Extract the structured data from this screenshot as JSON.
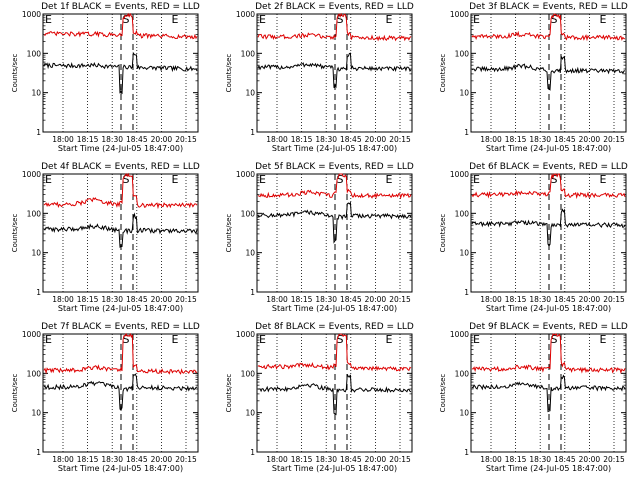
{
  "figure": {
    "background": "#ffffff",
    "panel_titles_format": "Det {n}f BLACK = Events, RED = LLD"
  },
  "chart_data": [
    {
      "type": "line",
      "title": "Det 1f BLACK = Events, RED = LLD",
      "xlabel": "Start Time (24-Jul-05 18:47:00)",
      "ylabel": "Counts/sec",
      "xticks": [
        "18:00",
        "18:15",
        "18:30",
        "18:45",
        "20:00",
        "20:15"
      ],
      "yticks": [
        "1",
        "10",
        "100",
        "1000"
      ],
      "ylim": [
        1,
        1000
      ],
      "yscale": "log",
      "markers": [
        "S",
        "E"
      ],
      "series": [
        {
          "name": "Events",
          "color": "#000000",
          "profile": {
            "base_start": 50,
            "base_end": 40,
            "bump": 55,
            "spike_dip": 10,
            "spike_peak": 95
          }
        },
        {
          "name": "LLD",
          "color": "#dd0000",
          "profile": {
            "base_start": 320,
            "base_end": 260,
            "bump": 340,
            "spike_dip": 300,
            "spike_peak": 1000
          }
        }
      ]
    },
    {
      "type": "line",
      "title": "Det 2f BLACK = Events, RED = LLD",
      "xlabel": "Start Time (24-Jul-05 18:47:00)",
      "ylabel": "Counts/sec",
      "xticks": [
        "18:00",
        "18:15",
        "18:30",
        "18:45",
        "20:00",
        "20:15"
      ],
      "yticks": [
        "1",
        "10",
        "100",
        "1000"
      ],
      "ylim": [
        1,
        1000
      ],
      "yscale": "log",
      "markers": [
        "S",
        "E"
      ],
      "series": [
        {
          "name": "Events",
          "color": "#000000",
          "profile": {
            "base_start": 45,
            "base_end": 40,
            "bump": 60,
            "spike_dip": 15,
            "spike_peak": 90
          }
        },
        {
          "name": "LLD",
          "color": "#dd0000",
          "profile": {
            "base_start": 270,
            "base_end": 240,
            "bump": 320,
            "spike_dip": 280,
            "spike_peak": 1000
          }
        }
      ]
    },
    {
      "type": "line",
      "title": "Det 3f BLACK = Events, RED = LLD",
      "xlabel": "Start Time (24-Jul-05 18:47:00)",
      "ylabel": "Counts/sec",
      "xticks": [
        "18:00",
        "18:15",
        "18:30",
        "18:45",
        "20:00",
        "20:15"
      ],
      "yticks": [
        "1",
        "10",
        "100",
        "1000"
      ],
      "ylim": [
        1,
        1000
      ],
      "yscale": "log",
      "markers": [
        "S",
        "E"
      ],
      "series": [
        {
          "name": "Events",
          "color": "#000000",
          "profile": {
            "base_start": 40,
            "base_end": 35,
            "bump": 55,
            "spike_dip": 12,
            "spike_peak": 80
          }
        },
        {
          "name": "LLD",
          "color": "#dd0000",
          "profile": {
            "base_start": 270,
            "base_end": 250,
            "bump": 340,
            "spike_dip": 300,
            "spike_peak": 1000
          }
        }
      ]
    },
    {
      "type": "line",
      "title": "Det 4f BLACK = Events, RED = LLD",
      "xlabel": "Start Time (24-Jul-05 18:47:00)",
      "ylabel": "Counts/sec",
      "xticks": [
        "18:00",
        "18:15",
        "18:30",
        "18:45",
        "20:00",
        "20:15"
      ],
      "yticks": [
        "1",
        "10",
        "100",
        "1000"
      ],
      "ylim": [
        1,
        1000
      ],
      "yscale": "log",
      "markers": [
        "S",
        "E"
      ],
      "series": [
        {
          "name": "Events",
          "color": "#000000",
          "profile": {
            "base_start": 40,
            "base_end": 35,
            "bump": 55,
            "spike_dip": 14,
            "spike_peak": 85
          }
        },
        {
          "name": "LLD",
          "color": "#dd0000",
          "profile": {
            "base_start": 170,
            "base_end": 160,
            "bump": 260,
            "spike_dip": 180,
            "spike_peak": 1000
          }
        }
      ]
    },
    {
      "type": "line",
      "title": "Det 5f BLACK = Events, RED = LLD",
      "xlabel": "Start Time (24-Jul-05 18:47:00)",
      "ylabel": "Counts/sec",
      "xticks": [
        "18:00",
        "18:15",
        "18:30",
        "18:45",
        "20:00",
        "20:15"
      ],
      "yticks": [
        "1",
        "10",
        "100",
        "1000"
      ],
      "ylim": [
        1,
        1000
      ],
      "yscale": "log",
      "markers": [
        "S",
        "E"
      ],
      "series": [
        {
          "name": "Events",
          "color": "#000000",
          "profile": {
            "base_start": 90,
            "base_end": 85,
            "bump": 120,
            "spike_dip": 20,
            "spike_peak": 170
          }
        },
        {
          "name": "LLD",
          "color": "#dd0000",
          "profile": {
            "base_start": 290,
            "base_end": 280,
            "bump": 380,
            "spike_dip": 320,
            "spike_peak": 1000
          }
        }
      ]
    },
    {
      "type": "line",
      "title": "Det 6f BLACK = Events, RED = LLD",
      "xlabel": "Start Time (24-Jul-05 18:47:00)",
      "ylabel": "Counts/sec",
      "xticks": [
        "18:00",
        "18:15",
        "18:30",
        "18:45",
        "20:00",
        "20:15"
      ],
      "yticks": [
        "1",
        "10",
        "100",
        "1000"
      ],
      "ylim": [
        1,
        1000
      ],
      "yscale": "log",
      "markers": [
        "S",
        "E"
      ],
      "series": [
        {
          "name": "Events",
          "color": "#000000",
          "profile": {
            "base_start": 55,
            "base_end": 50,
            "bump": 65,
            "spike_dip": 15,
            "spike_peak": 120
          }
        },
        {
          "name": "LLD",
          "color": "#dd0000",
          "profile": {
            "base_start": 300,
            "base_end": 290,
            "bump": 370,
            "spike_dip": 320,
            "spike_peak": 1000
          }
        }
      ]
    },
    {
      "type": "line",
      "title": "Det 7f BLACK = Events, RED = LLD",
      "xlabel": "Start Time (24-Jul-05 18:47:00)",
      "ylabel": "Counts/sec",
      "xticks": [
        "18:00",
        "18:15",
        "18:30",
        "18:45",
        "20:00",
        "20:15"
      ],
      "yticks": [
        "1",
        "10",
        "100",
        "1000"
      ],
      "ylim": [
        1,
        1000
      ],
      "yscale": "log",
      "markers": [
        "S",
        "E"
      ],
      "series": [
        {
          "name": "Events",
          "color": "#000000",
          "profile": {
            "base_start": 45,
            "base_end": 42,
            "bump": 65,
            "spike_dip": 12,
            "spike_peak": 90
          }
        },
        {
          "name": "LLD",
          "color": "#dd0000",
          "profile": {
            "base_start": 120,
            "base_end": 110,
            "bump": 160,
            "spike_dip": 130,
            "spike_peak": 1000
          }
        }
      ]
    },
    {
      "type": "line",
      "title": "Det 8f BLACK = Events, RED = LLD",
      "xlabel": "Start Time (24-Jul-05 18:47:00)",
      "ylabel": "Counts/sec",
      "xticks": [
        "18:00",
        "18:15",
        "18:30",
        "18:45",
        "20:00",
        "20:15"
      ],
      "yticks": [
        "1",
        "10",
        "100",
        "1000"
      ],
      "ylim": [
        1,
        1000
      ],
      "yscale": "log",
      "markers": [
        "S",
        "E"
      ],
      "series": [
        {
          "name": "Events",
          "color": "#000000",
          "profile": {
            "base_start": 40,
            "base_end": 38,
            "bump": 60,
            "spike_dip": 10,
            "spike_peak": 85
          }
        },
        {
          "name": "LLD",
          "color": "#dd0000",
          "profile": {
            "base_start": 150,
            "base_end": 130,
            "bump": 190,
            "spike_dip": 160,
            "spike_peak": 1000
          }
        }
      ]
    },
    {
      "type": "line",
      "title": "Det 9f BLACK = Events, RED = LLD",
      "xlabel": "Start Time (24-Jul-05 18:47:00)",
      "ylabel": "Counts/sec",
      "xticks": [
        "18:00",
        "18:15",
        "18:30",
        "18:45",
        "20:00",
        "20:15"
      ],
      "yticks": [
        "1",
        "10",
        "100",
        "1000"
      ],
      "ylim": [
        1,
        1000
      ],
      "yscale": "log",
      "markers": [
        "S",
        "E"
      ],
      "series": [
        {
          "name": "Events",
          "color": "#000000",
          "profile": {
            "base_start": 45,
            "base_end": 42,
            "bump": 60,
            "spike_dip": 12,
            "spike_peak": 80
          }
        },
        {
          "name": "LLD",
          "color": "#dd0000",
          "profile": {
            "base_start": 130,
            "base_end": 120,
            "bump": 170,
            "spike_dip": 140,
            "spike_peak": 1000
          }
        }
      ]
    }
  ]
}
